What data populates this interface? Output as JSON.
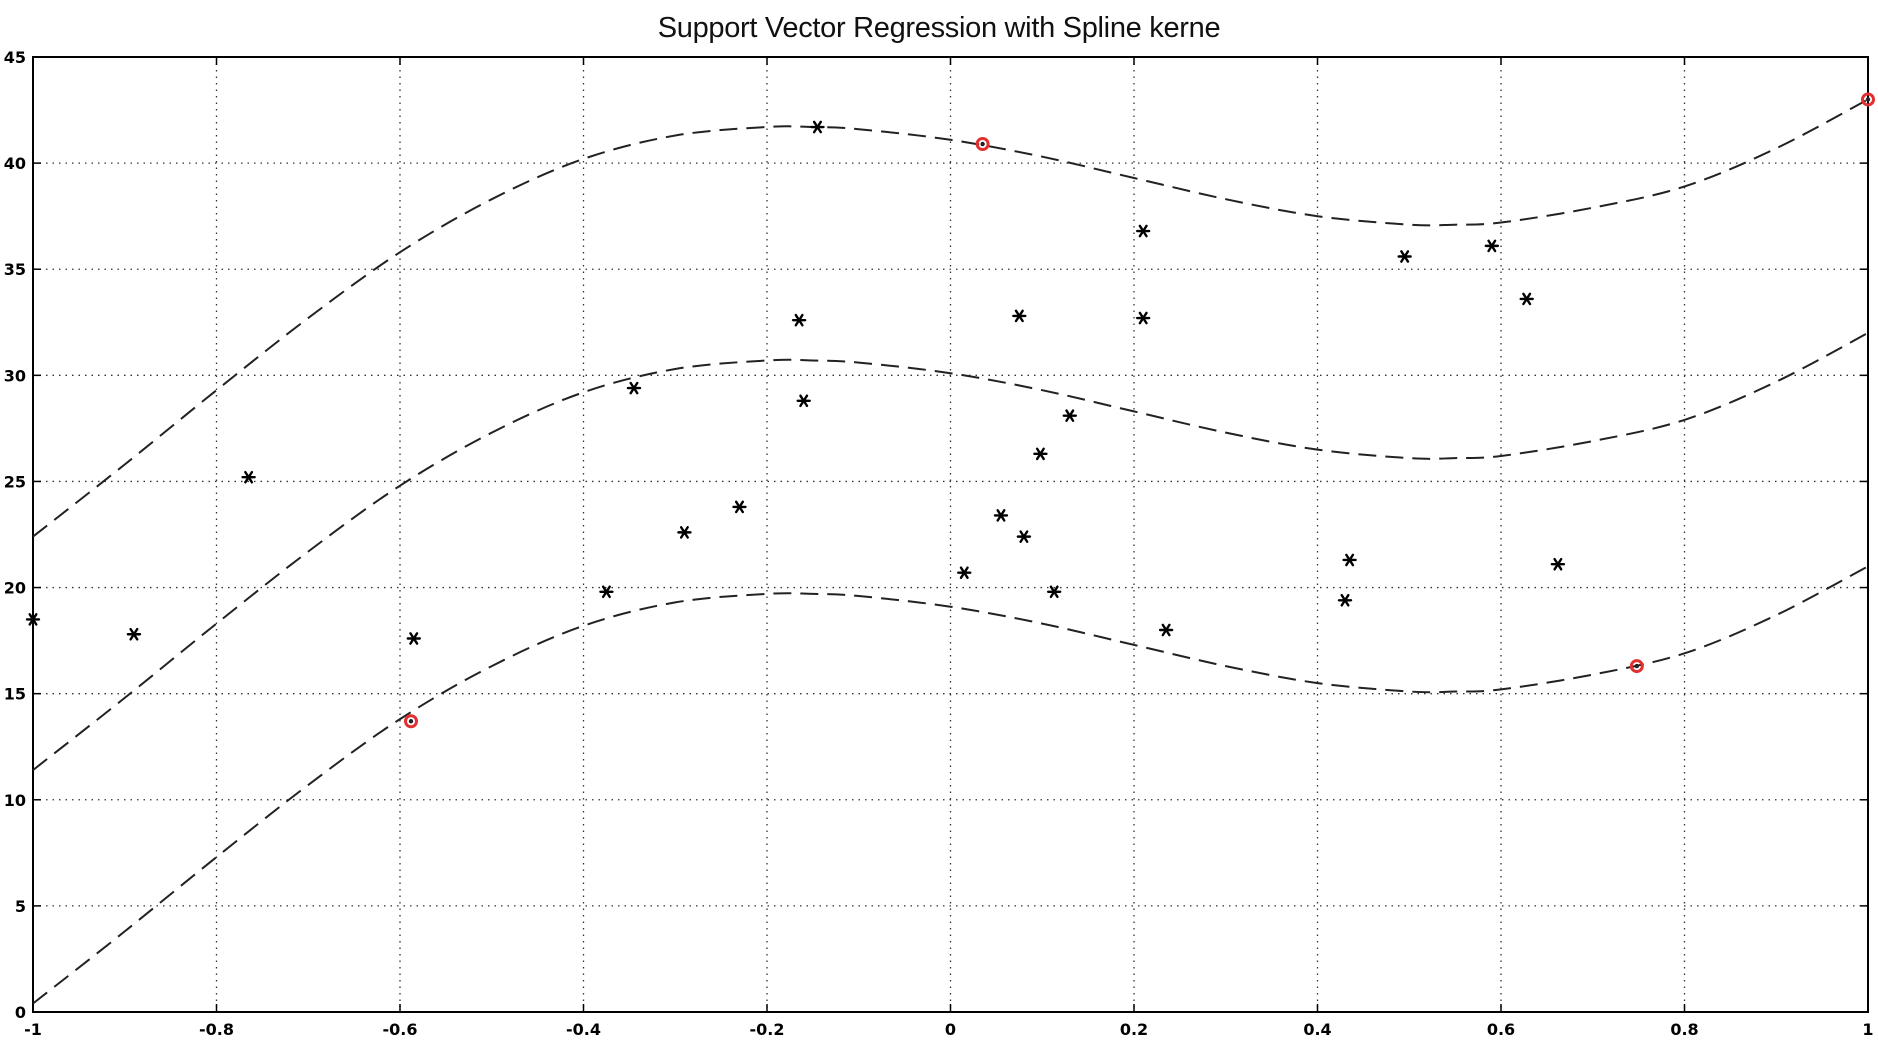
{
  "chart_data": {
    "type": "scatter",
    "title": "Support Vector Regression with Spline kerne",
    "xlabel": "",
    "ylabel": "",
    "xlim": [
      -1,
      1
    ],
    "ylim": [
      0,
      45
    ],
    "xticks": [
      -1,
      -0.8,
      -0.6,
      -0.4,
      -0.2,
      0,
      0.2,
      0.4,
      0.6,
      0.8,
      1
    ],
    "xtick_labels": [
      "-1",
      "-0.8",
      "-0.6",
      "-0.4",
      "-0.2",
      "0",
      "0.2",
      "0.4",
      "0.6",
      "0.8",
      "1"
    ],
    "yticks": [
      0,
      5,
      10,
      15,
      20,
      25,
      30,
      35,
      40,
      45
    ],
    "ytick_labels": [
      "0",
      "5",
      "10",
      "15",
      "20",
      "25",
      "30",
      "35",
      "40",
      "45"
    ],
    "grid": true,
    "points": {
      "x": [
        -1.0,
        -0.89,
        -0.765,
        -0.585,
        -0.375,
        -0.345,
        -0.29,
        -0.23,
        -0.165,
        -0.16,
        -0.145,
        0.015,
        0.055,
        0.075,
        0.08,
        0.098,
        0.113,
        0.13,
        0.21,
        0.21,
        0.235,
        0.43,
        0.435,
        0.495,
        0.59,
        0.628,
        0.662
      ],
      "y": [
        18.5,
        17.8,
        25.2,
        17.6,
        19.8,
        29.4,
        22.6,
        23.8,
        32.6,
        28.8,
        41.7,
        20.7,
        23.4,
        32.8,
        22.4,
        26.3,
        19.8,
        28.1,
        36.8,
        32.7,
        18.0,
        19.4,
        21.3,
        35.6,
        36.1,
        33.6,
        21.1
      ],
      "marker": "*",
      "color": "#000000"
    },
    "support_vectors": {
      "x": [
        -0.588,
        0.035,
        0.748,
        1.0
      ],
      "y": [
        13.7,
        40.9,
        16.3,
        43.0
      ],
      "marker": "o",
      "color": "#e23030"
    },
    "curves": {
      "x": [
        -1.0,
        -0.9,
        -0.8,
        -0.7,
        -0.6,
        -0.5,
        -0.4,
        -0.3,
        -0.2,
        -0.15,
        -0.1,
        0.0,
        0.1,
        0.2,
        0.3,
        0.4,
        0.5,
        0.55,
        0.6,
        0.7,
        0.8,
        0.9,
        1.0
      ],
      "center": [
        11.4,
        14.8,
        18.3,
        21.7,
        24.8,
        27.3,
        29.2,
        30.3,
        30.7,
        30.7,
        30.6,
        30.1,
        29.3,
        28.3,
        27.3,
        26.5,
        26.1,
        26.1,
        26.2,
        26.9,
        27.9,
        29.7,
        32.0
      ],
      "epsilon": 11.0,
      "line_style": "dashed",
      "color": "#222222"
    }
  }
}
